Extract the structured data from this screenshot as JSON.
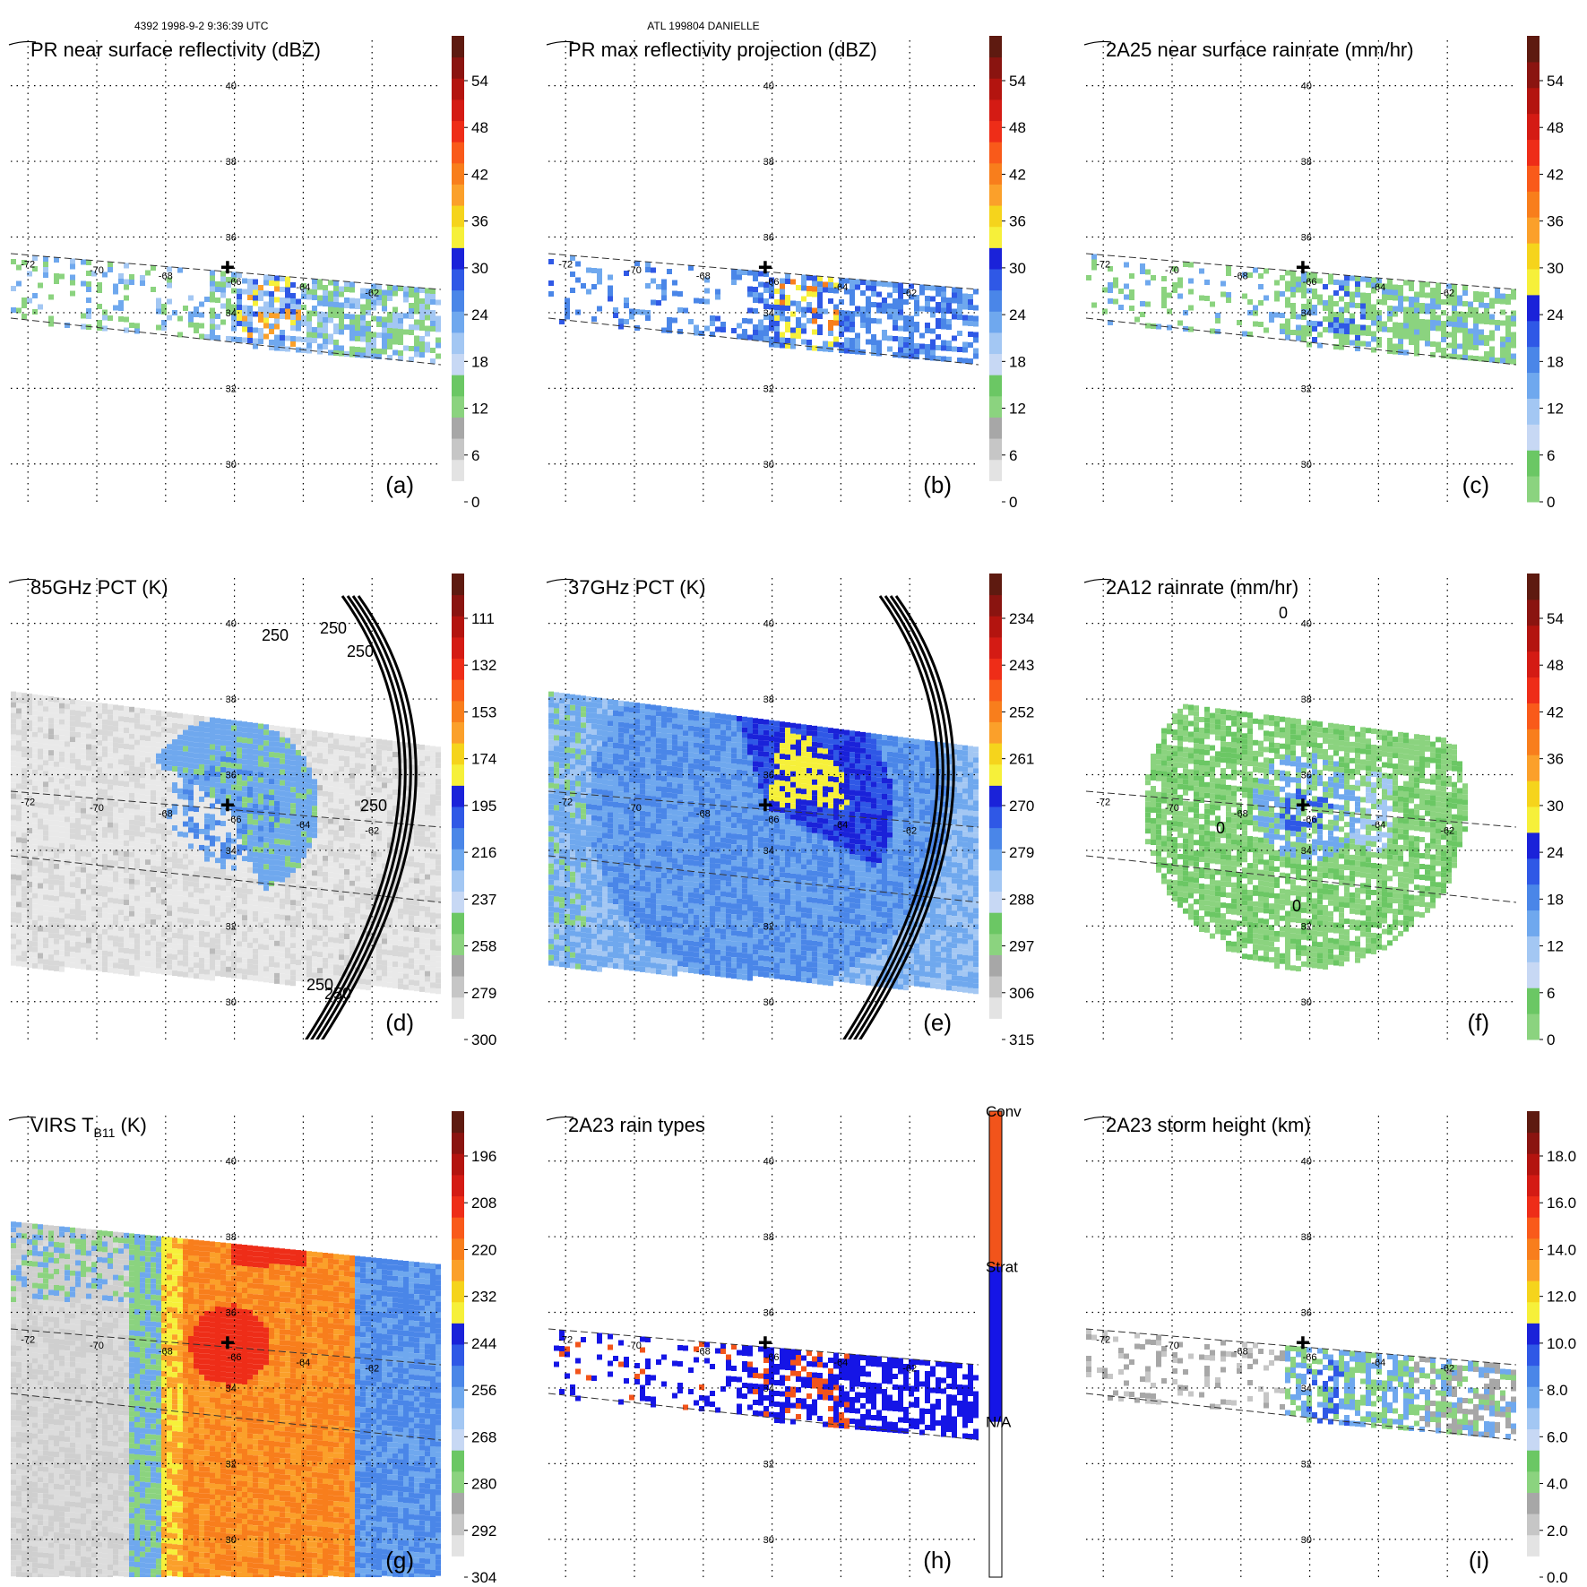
{
  "header": {
    "left": "4392 1998-9-2 9:36:39 UTC",
    "center": "ATL 199804 DANIELLE"
  },
  "map": {
    "lon_labels": [
      "-72",
      "-70",
      "-68",
      "-66",
      "-64",
      "-62"
    ],
    "lat_labels": [
      "40",
      "38",
      "36",
      "34",
      "32",
      "30"
    ],
    "lon_values": [
      -72,
      -70,
      -68,
      -66,
      -64,
      -62
    ],
    "lat_values": [
      40,
      38,
      36,
      34,
      32,
      30
    ],
    "lon_range": [
      -72.5,
      -60.0
    ],
    "lat_range": [
      29.0,
      41.2
    ],
    "storm_center": {
      "lon": -66.2,
      "lat": 35.2
    }
  },
  "chart_data": [
    {
      "type": "heatmap",
      "panel": "(a)",
      "title": "PR near surface reflectivity (dBZ)",
      "colorbar_ticks": [
        "0",
        "6",
        "12",
        "18",
        "24",
        "30",
        "36",
        "42",
        "48",
        "54"
      ],
      "colorbar_type": "reflectivity",
      "swath": "pr",
      "field": "pr_sfc"
    },
    {
      "type": "heatmap",
      "panel": "(b)",
      "title": "PR max reflectivity projection (dBZ)",
      "colorbar_ticks": [
        "0",
        "6",
        "12",
        "18",
        "24",
        "30",
        "36",
        "42",
        "48",
        "54"
      ],
      "colorbar_type": "reflectivity",
      "swath": "pr",
      "field": "pr_max"
    },
    {
      "type": "heatmap",
      "panel": "(c)",
      "title": "2A25 near surface rainrate (mm/hr)",
      "colorbar_ticks": [
        "0",
        "6",
        "12",
        "18",
        "24",
        "30",
        "36",
        "42",
        "48",
        "54"
      ],
      "colorbar_type": "rainrate",
      "swath": "pr",
      "field": "rain25"
    },
    {
      "type": "heatmap",
      "panel": "(d)",
      "title": "85GHz PCT (K)",
      "colorbar_ticks": [
        "300",
        "279",
        "258",
        "237",
        "216",
        "195",
        "174",
        "153",
        "132",
        "111"
      ],
      "colorbar_type": "reflectivity",
      "swath": "tmi",
      "field": "pct85",
      "contour_labels": [
        "250",
        "250",
        "250",
        "250",
        "250",
        "250"
      ]
    },
    {
      "type": "heatmap",
      "panel": "(e)",
      "title": "37GHz PCT (K)",
      "colorbar_ticks": [
        "315",
        "306",
        "297",
        "288",
        "279",
        "270",
        "261",
        "252",
        "243",
        "234"
      ],
      "colorbar_type": "reflectivity",
      "swath": "tmi",
      "field": "pct37"
    },
    {
      "type": "heatmap",
      "panel": "(f)",
      "title": "2A12 rainrate (mm/hr)",
      "colorbar_ticks": [
        "0",
        "6",
        "12",
        "18",
        "24",
        "30",
        "36",
        "42",
        "48",
        "54"
      ],
      "colorbar_type": "rainrate",
      "swath": "tmi",
      "field": "rain12",
      "contour_labels": [
        "0",
        "0",
        "0"
      ]
    },
    {
      "type": "heatmap",
      "panel": "(g)",
      "title": "VIRS T",
      "title_sub": "B11",
      "title_tail": " (K)",
      "colorbar_ticks": [
        "304",
        "292",
        "280",
        "268",
        "256",
        "244",
        "232",
        "220",
        "208",
        "196"
      ],
      "colorbar_type": "reflectivity",
      "swath": "virs",
      "field": "virs"
    },
    {
      "type": "heatmap",
      "panel": "(h)",
      "title": "2A23 rain types",
      "colorbar_ticks": [
        "N/A",
        "Strat",
        "Conv"
      ],
      "colorbar_type": "raintype",
      "swath": "pr",
      "field": "raintype"
    },
    {
      "type": "heatmap",
      "panel": "(i)",
      "title": "2A23 storm height (km)",
      "colorbar_ticks": [
        "0.0",
        "2.0",
        "4.0",
        "6.0",
        "8.0",
        "10.0",
        "12.0",
        "14.0",
        "16.0",
        "18.0"
      ],
      "colorbar_type": "height",
      "swath": "pr",
      "field": "height"
    }
  ],
  "palettes": {
    "reflectivity": [
      "#ffffff",
      "#e3e3e3",
      "#c6c6c6",
      "#a7a7a7",
      "#8bd37f",
      "#6bc764",
      "#c7d8f4",
      "#a3c7f3",
      "#6fa8ee",
      "#4a86e8",
      "#2f58e6",
      "#1a22d9",
      "#f6f03a",
      "#f5d41c",
      "#fba02a",
      "#f87e1c",
      "#f95a1a",
      "#ee2d18",
      "#d41b14",
      "#b3140f",
      "#8a1410",
      "#5e1a10"
    ],
    "rainrate": [
      "#8bd37f",
      "#6bc764",
      "#c7d8f4",
      "#a3c7f3",
      "#6fa8ee",
      "#4a86e8",
      "#2f58e6",
      "#1a22d9",
      "#f6f03a",
      "#f5d41c",
      "#fba02a",
      "#f87e1c",
      "#f95a1a",
      "#ee2d18",
      "#d41b14",
      "#b3140f",
      "#8a1410",
      "#5e1a10"
    ],
    "height": [
      "#ffffff",
      "#e3e3e3",
      "#c6c6c6",
      "#a7a7a7",
      "#8bd37f",
      "#6bc764",
      "#c7d8f4",
      "#a3c7f3",
      "#6fa8ee",
      "#4a86e8",
      "#2f58e6",
      "#1a22d9",
      "#f6f03a",
      "#f5d41c",
      "#fba02a",
      "#f87e1c",
      "#f95a1a",
      "#ee2d18",
      "#d41b14",
      "#b3140f",
      "#8a1410",
      "#5e1a10"
    ],
    "raintype": [
      "#ffffff",
      "#1515e6",
      "#f2541b"
    ]
  }
}
